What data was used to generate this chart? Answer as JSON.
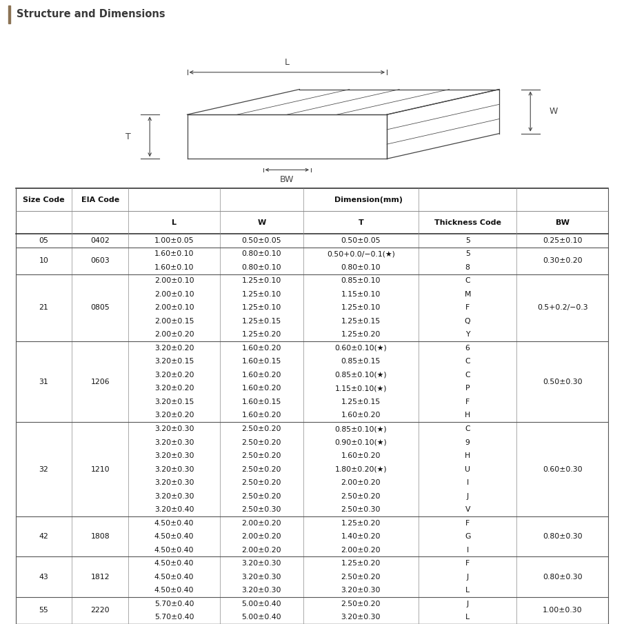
{
  "title": "Structure and Dimensions",
  "title_bar_color": "#e8e4dc",
  "title_accent_color": "#8B7355",
  "bg_color": "#ffffff",
  "col_headers_row1": [
    "Size Code",
    "EIA Code",
    "Dimension(mm)"
  ],
  "col_headers_row2": [
    "L",
    "W",
    "T",
    "Thickness Code",
    "BW"
  ],
  "rows": [
    [
      "05",
      "0402",
      "1.00±0.05",
      "0.50±0.05",
      "0.50±0.05",
      "5",
      "0.25±0.10"
    ],
    [
      "10",
      "0603",
      "1.60±0.10",
      "0.80±0.10",
      "0.50+0.0/−0.1(★)",
      "5",
      "0.30±0.20"
    ],
    [
      "10",
      "0603",
      "1.60±0.10",
      "0.80±0.10",
      "0.80±0.10",
      "8",
      "0.30±0.20"
    ],
    [
      "21",
      "0805",
      "2.00±0.10",
      "1.25±0.10",
      "0.85±0.10",
      "C",
      "0.5+0.2/−0.3"
    ],
    [
      "21",
      "0805",
      "2.00±0.10",
      "1.25±0.10",
      "1.15±0.10",
      "M",
      "0.5+0.2/−0.3"
    ],
    [
      "21",
      "0805",
      "2.00±0.10",
      "1.25±0.10",
      "1.25±0.10",
      "F",
      "0.5+0.2/−0.3"
    ],
    [
      "21",
      "0805",
      "2.00±0.15",
      "1.25±0.15",
      "1.25±0.15",
      "Q",
      "0.5+0.2/−0.3"
    ],
    [
      "21",
      "0805",
      "2.00±0.20",
      "1.25±0.20",
      "1.25±0.20",
      "Y",
      "0.5+0.2/−0.3"
    ],
    [
      "31",
      "1206",
      "3.20±0.20",
      "1.60±0.20",
      "0.60±0.10(★)",
      "6",
      "0.50±0.30"
    ],
    [
      "31",
      "1206",
      "3.20±0.15",
      "1.60±0.15",
      "0.85±0.15",
      "C",
      "0.50±0.30"
    ],
    [
      "31",
      "1206",
      "3.20±0.20",
      "1.60±0.20",
      "0.85±0.10(★)",
      "C",
      "0.50±0.30"
    ],
    [
      "31",
      "1206",
      "3.20±0.20",
      "1.60±0.20",
      "1.15±0.10(★)",
      "P",
      "0.50±0.30"
    ],
    [
      "31",
      "1206",
      "3.20±0.15",
      "1.60±0.15",
      "1.25±0.15",
      "F",
      "0.50±0.30"
    ],
    [
      "31",
      "1206",
      "3.20±0.20",
      "1.60±0.20",
      "1.60±0.20",
      "H",
      "0.50±0.30"
    ],
    [
      "32",
      "1210",
      "3.20±0.30",
      "2.50±0.20",
      "0.85±0.10(★)",
      "C",
      "0.60±0.30"
    ],
    [
      "32",
      "1210",
      "3.20±0.30",
      "2.50±0.20",
      "0.90±0.10(★)",
      "9",
      "0.60±0.30"
    ],
    [
      "32",
      "1210",
      "3.20±0.30",
      "2.50±0.20",
      "1.60±0.20",
      "H",
      "0.60±0.30"
    ],
    [
      "32",
      "1210",
      "3.20±0.30",
      "2.50±0.20",
      "1.80±0.20(★)",
      "U",
      "0.60±0.30"
    ],
    [
      "32",
      "1210",
      "3.20±0.30",
      "2.50±0.20",
      "2.00±0.20",
      "I",
      "0.60±0.30"
    ],
    [
      "32",
      "1210",
      "3.20±0.30",
      "2.50±0.20",
      "2.50±0.20",
      "J",
      "0.60±0.30"
    ],
    [
      "32",
      "1210",
      "3.20±0.40",
      "2.50±0.30",
      "2.50±0.30",
      "V",
      "0.60±0.30"
    ],
    [
      "42",
      "1808",
      "4.50±0.40",
      "2.00±0.20",
      "1.25±0.20",
      "F",
      "0.80±0.30"
    ],
    [
      "42",
      "1808",
      "4.50±0.40",
      "2.00±0.20",
      "1.40±0.20",
      "G",
      "0.80±0.30"
    ],
    [
      "42",
      "1808",
      "4.50±0.40",
      "2.00±0.20",
      "2.00±0.20",
      "I",
      "0.80±0.30"
    ],
    [
      "43",
      "1812",
      "4.50±0.40",
      "3.20±0.30",
      "1.25±0.20",
      "F",
      "0.80±0.30"
    ],
    [
      "43",
      "1812",
      "4.50±0.40",
      "3.20±0.30",
      "2.50±0.20",
      "J",
      "0.80±0.30"
    ],
    [
      "43",
      "1812",
      "4.50±0.40",
      "3.20±0.30",
      "3.20±0.30",
      "L",
      "0.80±0.30"
    ],
    [
      "55",
      "2220",
      "5.70±0.40",
      "5.00±0.40",
      "2.50±0.20",
      "J",
      "1.00±0.30"
    ],
    [
      "55",
      "2220",
      "5.70±0.40",
      "5.00±0.40",
      "3.20±0.30",
      "L",
      "1.00±0.30"
    ]
  ],
  "size_groups": [
    {
      "code": "05",
      "eia": "0402",
      "rows": [
        0
      ],
      "bw": "0.25±0.10"
    },
    {
      "code": "10",
      "eia": "0603",
      "rows": [
        1,
        2
      ],
      "bw": "0.30±0.20"
    },
    {
      "code": "21",
      "eia": "0805",
      "rows": [
        3,
        4,
        5,
        6,
        7
      ],
      "bw": "0.5+0.2/−0.3"
    },
    {
      "code": "31",
      "eia": "1206",
      "rows": [
        8,
        9,
        10,
        11,
        12,
        13
      ],
      "bw": "0.50±0.30"
    },
    {
      "code": "32",
      "eia": "1210",
      "rows": [
        14,
        15,
        16,
        17,
        18,
        19,
        20
      ],
      "bw": "0.60±0.30"
    },
    {
      "code": "42",
      "eia": "1808",
      "rows": [
        21,
        22,
        23
      ],
      "bw": "0.80±0.30"
    },
    {
      "code": "43",
      "eia": "1812",
      "rows": [
        24,
        25,
        26
      ],
      "bw": "0.80±0.30"
    },
    {
      "code": "55",
      "eia": "2220",
      "rows": [
        27,
        28
      ],
      "bw": "1.00±0.30"
    }
  ],
  "group_end_rows": [
    0,
    2,
    7,
    13,
    20,
    23,
    26,
    28
  ]
}
